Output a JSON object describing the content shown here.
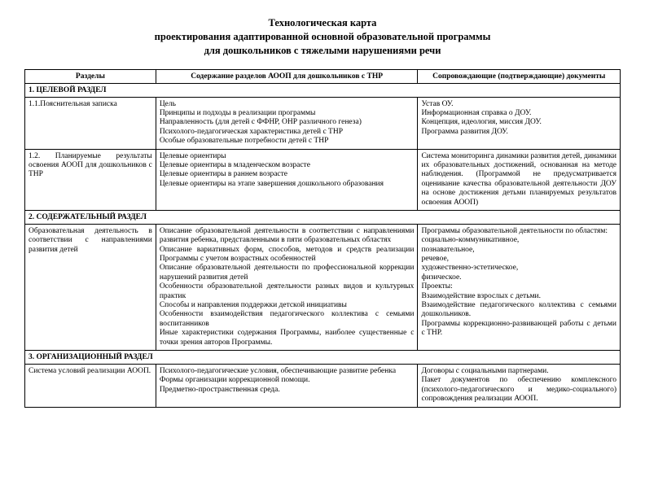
{
  "title": {
    "l1": "Технологическая карта",
    "l2": "проектирования адаптированной основной образовательной программы",
    "l3": "для дошкольников с тяжелыми нарушениями речи"
  },
  "headers": {
    "c1": "Разделы",
    "c2": "Содержание разделов АООП для дошкольников с ТНР",
    "c3": "Сопровождающие (подтверждающие) документы"
  },
  "sec1": "1.   ЦЕЛЕВОЙ РАЗДЕЛ",
  "r11": {
    "c1": "1.1.Пояснительная записка",
    "c2": "Цель\nПринципы и подходы в реализации программы\nНаправленность (для детей с ФФНР, ОНР различного генеза)\nПсихолого-педагогическая характеристика детей с ТНР\nОсобые образовательные потребности детей с ТНР",
    "c3": "Устав ОУ.\nИнформационная справка о ДОУ.\nКонцепция, идеология, миссия ДОУ.\nПрограмма развития ДОУ."
  },
  "r12": {
    "c1": "1.2. Планируемые результаты освоения АООП для дошкольников с ТНР",
    "c2": "Целевые ориентиры\nЦелевые ориентиры в младенческом возрасте\nЦелевые ориентиры в раннем возрасте\nЦелевые ориентиры на этапе завершения дошкольного образования",
    "c3": "Система мониторинга динамики развития детей, динамики их образовательных достижений, основанная на методе наблюдения. (Программой не предусматривается оценивание качества образовательной деятельности ДОУ на основе достижения детьми планируемых результатов освоения АООП)"
  },
  "sec2": "2.   СОДЕРЖАТЕЛЬНЫЙ РАЗДЕЛ",
  "r21": {
    "c1": "Образовательная деятельность в соответствии с направлениями развития детей",
    "c2": "Описание образовательной деятельности в соответствии с направлениями развития ребенка, представленными в пяти образовательных областях\nОписание вариативных форм, способов, методов и средств реализации Программы с учетом возрастных особенностей\nОписание образовательной деятельности по профессиональной коррекции нарушений развития детей\nОсобенности образовательной деятельности разных видов и культурных практик\nСпособы и направления поддержки детской инициативы\nОсобенности взаимодействия педагогического коллектива с семьями воспитанников\nИные характеристики содержания Программы, наиболее существенные с точки зрения авторов Программы.",
    "c3": "Программы образовательной деятельности по областям:\n  социально-коммуникативное,\n  познавательное,\n  речевое,\n  художественно-эстетическое,\n  физическое.\nПроекты:\n  Взаимодействие взрослых с детьми.\n  Взаимодействие педагогического коллектива с семьями дошкольников.\nПрограммы коррекционно-развивающей работы с детьми с ТНР."
  },
  "sec3": "3.   ОРГАНИЗАЦИОННЫЙ РАЗДЕЛ",
  "r31": {
    "c1": "Система условий реализации АООП.",
    "c2": "Психолого-педагогические условия, обеспечивающие развитие ребенка\nФормы организации коррекционной помощи.\nПредметно-пространственная среда.",
    "c3": "Договоры с социальными партнерами.\nПакет документов по обеспечению комплексного (психолого-педагогического и медико-социального) сопровождения реализации АООП."
  }
}
